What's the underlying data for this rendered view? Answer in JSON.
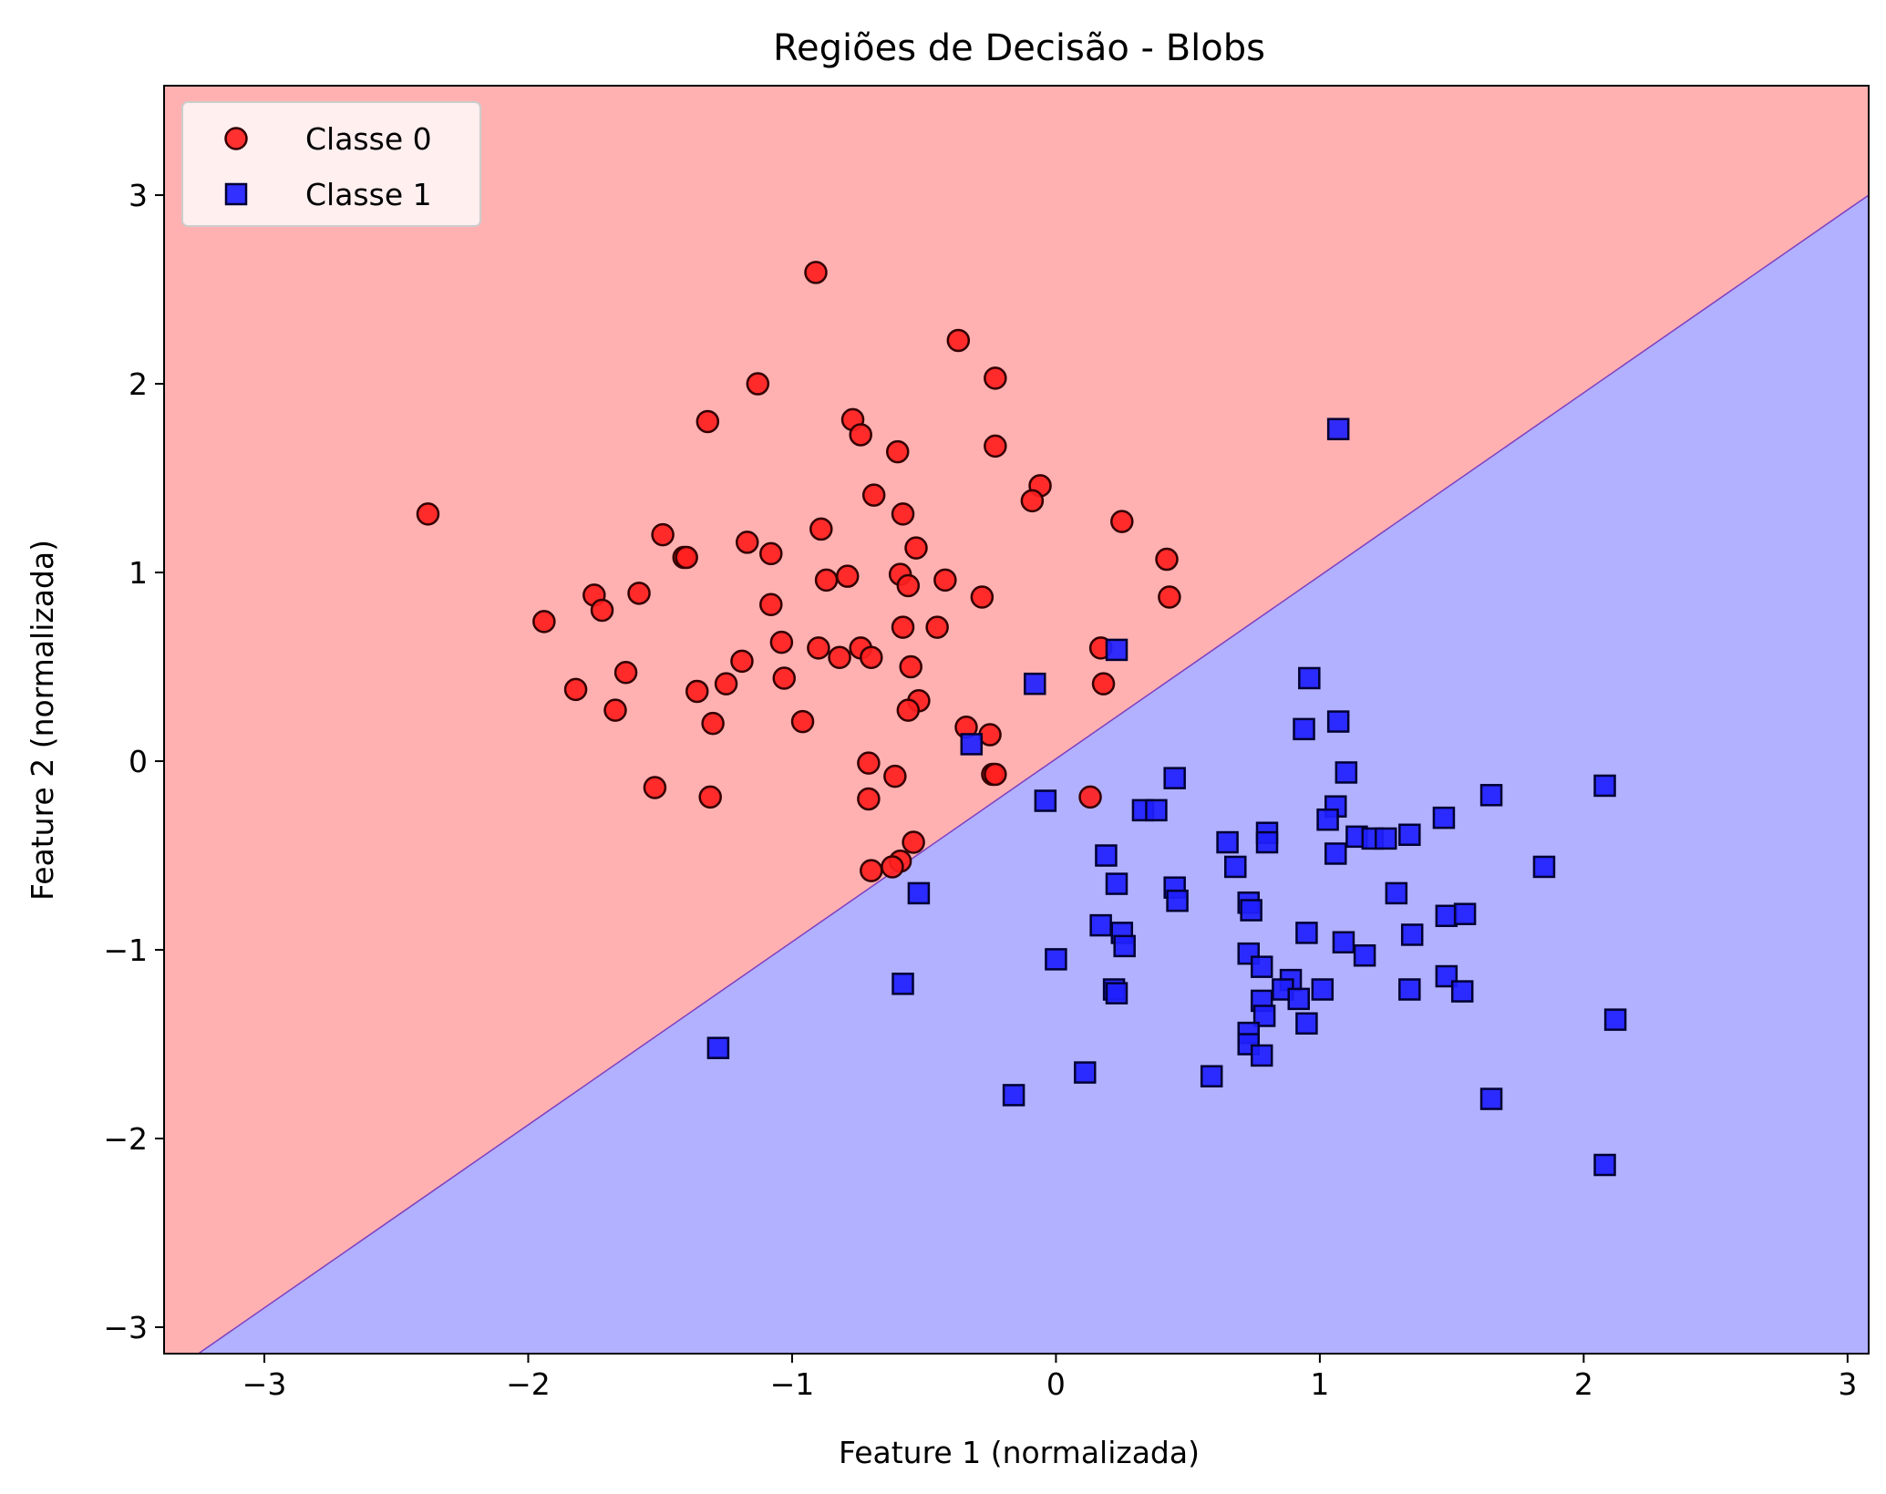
{
  "chart_data": {
    "type": "scatter",
    "title": "Regiões de Decisão - Blobs",
    "xlabel": "Feature 1 (normalizada)",
    "ylabel": "Feature 2 (normalizada)",
    "xlim": [
      -3.38,
      3.08
    ],
    "ylim": [
      -3.14,
      3.58
    ],
    "xticks": [
      -3,
      -2,
      -1,
      0,
      1,
      2,
      3
    ],
    "yticks": [
      -3,
      -2,
      -1,
      0,
      1,
      2,
      3
    ],
    "xtick_labels": [
      "−3",
      "−2",
      "−1",
      "0",
      "1",
      "2",
      "3"
    ],
    "ytick_labels": [
      "−3",
      "−2",
      "−1",
      "0",
      "1",
      "2",
      "3"
    ],
    "grid": false,
    "legend_position": "top-left",
    "decision_boundary": {
      "description": "linear",
      "points": [
        [
          -3.25,
          -3.14
        ],
        [
          3.08,
          3.0
        ]
      ],
      "region_above_color": "#ffb1b1",
      "region_below_color": "#b1b1ff",
      "line_color": "#7f3fbf"
    },
    "series": [
      {
        "name": "Classe 0",
        "marker": "circle",
        "color": "#ff2020",
        "edge_color": "#330000",
        "points": [
          [
            -2.38,
            1.31
          ],
          [
            -0.91,
            2.59
          ],
          [
            -0.37,
            2.23
          ],
          [
            -0.23,
            2.03
          ],
          [
            -1.13,
            2.0
          ],
          [
            -1.32,
            1.8
          ],
          [
            -0.77,
            1.81
          ],
          [
            -0.74,
            1.73
          ],
          [
            -0.6,
            1.64
          ],
          [
            -0.23,
            1.67
          ],
          [
            -0.06,
            1.46
          ],
          [
            -0.09,
            1.38
          ],
          [
            -0.69,
            1.41
          ],
          [
            -0.58,
            1.31
          ],
          [
            0.25,
            1.27
          ],
          [
            -0.89,
            1.23
          ],
          [
            -1.49,
            1.2
          ],
          [
            -1.17,
            1.16
          ],
          [
            -0.53,
            1.13
          ],
          [
            -1.41,
            1.08
          ],
          [
            -1.4,
            1.08
          ],
          [
            -1.08,
            1.1
          ],
          [
            0.42,
            1.07
          ],
          [
            -0.59,
            0.99
          ],
          [
            -0.79,
            0.98
          ],
          [
            -0.87,
            0.96
          ],
          [
            -0.42,
            0.96
          ],
          [
            -0.56,
            0.93
          ],
          [
            -1.75,
            0.88
          ],
          [
            -1.58,
            0.89
          ],
          [
            -0.28,
            0.87
          ],
          [
            0.43,
            0.87
          ],
          [
            -1.72,
            0.8
          ],
          [
            -1.08,
            0.83
          ],
          [
            -1.94,
            0.74
          ],
          [
            -0.58,
            0.71
          ],
          [
            -0.45,
            0.71
          ],
          [
            -1.04,
            0.63
          ],
          [
            -0.9,
            0.6
          ],
          [
            -0.74,
            0.6
          ],
          [
            -0.7,
            0.55
          ],
          [
            -0.82,
            0.55
          ],
          [
            0.17,
            0.6
          ],
          [
            -1.19,
            0.53
          ],
          [
            -0.55,
            0.5
          ],
          [
            -1.63,
            0.47
          ],
          [
            -1.03,
            0.44
          ],
          [
            -1.25,
            0.41
          ],
          [
            0.18,
            0.41
          ],
          [
            -1.82,
            0.38
          ],
          [
            -1.36,
            0.37
          ],
          [
            -0.52,
            0.32
          ],
          [
            -0.56,
            0.27
          ],
          [
            -1.67,
            0.27
          ],
          [
            -1.3,
            0.2
          ],
          [
            -0.96,
            0.21
          ],
          [
            -0.34,
            0.18
          ],
          [
            -0.25,
            0.14
          ],
          [
            -0.71,
            -0.01
          ],
          [
            -0.24,
            -0.07
          ],
          [
            -0.61,
            -0.08
          ],
          [
            -0.23,
            -0.07
          ],
          [
            -1.52,
            -0.14
          ],
          [
            -1.31,
            -0.19
          ],
          [
            -0.71,
            -0.2
          ],
          [
            0.13,
            -0.19
          ],
          [
            -0.54,
            -0.43
          ],
          [
            -0.59,
            -0.53
          ],
          [
            -0.62,
            -0.56
          ],
          [
            -0.7,
            -0.58
          ]
        ]
      },
      {
        "name": "Classe 1",
        "marker": "square",
        "color": "#2020ff",
        "edge_color": "#000033",
        "points": [
          [
            1.07,
            1.76
          ],
          [
            0.23,
            0.59
          ],
          [
            -0.08,
            0.41
          ],
          [
            0.96,
            0.44
          ],
          [
            1.07,
            0.21
          ],
          [
            0.94,
            0.17
          ],
          [
            -0.32,
            0.09
          ],
          [
            1.1,
            -0.06
          ],
          [
            0.45,
            -0.09
          ],
          [
            2.08,
            -0.13
          ],
          [
            1.65,
            -0.18
          ],
          [
            -0.04,
            -0.21
          ],
          [
            0.33,
            -0.26
          ],
          [
            0.38,
            -0.26
          ],
          [
            1.06,
            -0.24
          ],
          [
            1.03,
            -0.31
          ],
          [
            0.8,
            -0.38
          ],
          [
            1.14,
            -0.4
          ],
          [
            1.2,
            -0.41
          ],
          [
            1.25,
            -0.41
          ],
          [
            1.34,
            -0.39
          ],
          [
            0.65,
            -0.43
          ],
          [
            0.8,
            -0.43
          ],
          [
            1.06,
            -0.49
          ],
          [
            1.47,
            -0.3
          ],
          [
            0.19,
            -0.5
          ],
          [
            1.85,
            -0.56
          ],
          [
            0.68,
            -0.56
          ],
          [
            0.23,
            -0.65
          ],
          [
            0.45,
            -0.67
          ],
          [
            -0.52,
            -0.7
          ],
          [
            1.29,
            -0.7
          ],
          [
            0.46,
            -0.74
          ],
          [
            0.73,
            -0.75
          ],
          [
            0.74,
            -0.79
          ],
          [
            1.48,
            -0.82
          ],
          [
            1.55,
            -0.81
          ],
          [
            0.17,
            -0.87
          ],
          [
            0.25,
            -0.91
          ],
          [
            0.95,
            -0.91
          ],
          [
            1.35,
            -0.92
          ],
          [
            0.26,
            -0.98
          ],
          [
            1.09,
            -0.96
          ],
          [
            0.73,
            -1.02
          ],
          [
            0.0,
            -1.05
          ],
          [
            1.17,
            -1.03
          ],
          [
            0.78,
            -1.09
          ],
          [
            0.89,
            -1.16
          ],
          [
            -0.58,
            -1.18
          ],
          [
            1.48,
            -1.14
          ],
          [
            0.22,
            -1.21
          ],
          [
            0.23,
            -1.23
          ],
          [
            0.86,
            -1.21
          ],
          [
            1.01,
            -1.21
          ],
          [
            1.34,
            -1.21
          ],
          [
            1.54,
            -1.22
          ],
          [
            0.78,
            -1.27
          ],
          [
            0.92,
            -1.26
          ],
          [
            0.79,
            -1.35
          ],
          [
            0.95,
            -1.39
          ],
          [
            2.12,
            -1.37
          ],
          [
            0.73,
            -1.44
          ],
          [
            0.73,
            -1.5
          ],
          [
            0.78,
            -1.56
          ],
          [
            -1.28,
            -1.52
          ],
          [
            0.11,
            -1.65
          ],
          [
            0.59,
            -1.67
          ],
          [
            -0.16,
            -1.77
          ],
          [
            1.65,
            -1.79
          ],
          [
            2.08,
            -2.14
          ]
        ]
      }
    ]
  }
}
